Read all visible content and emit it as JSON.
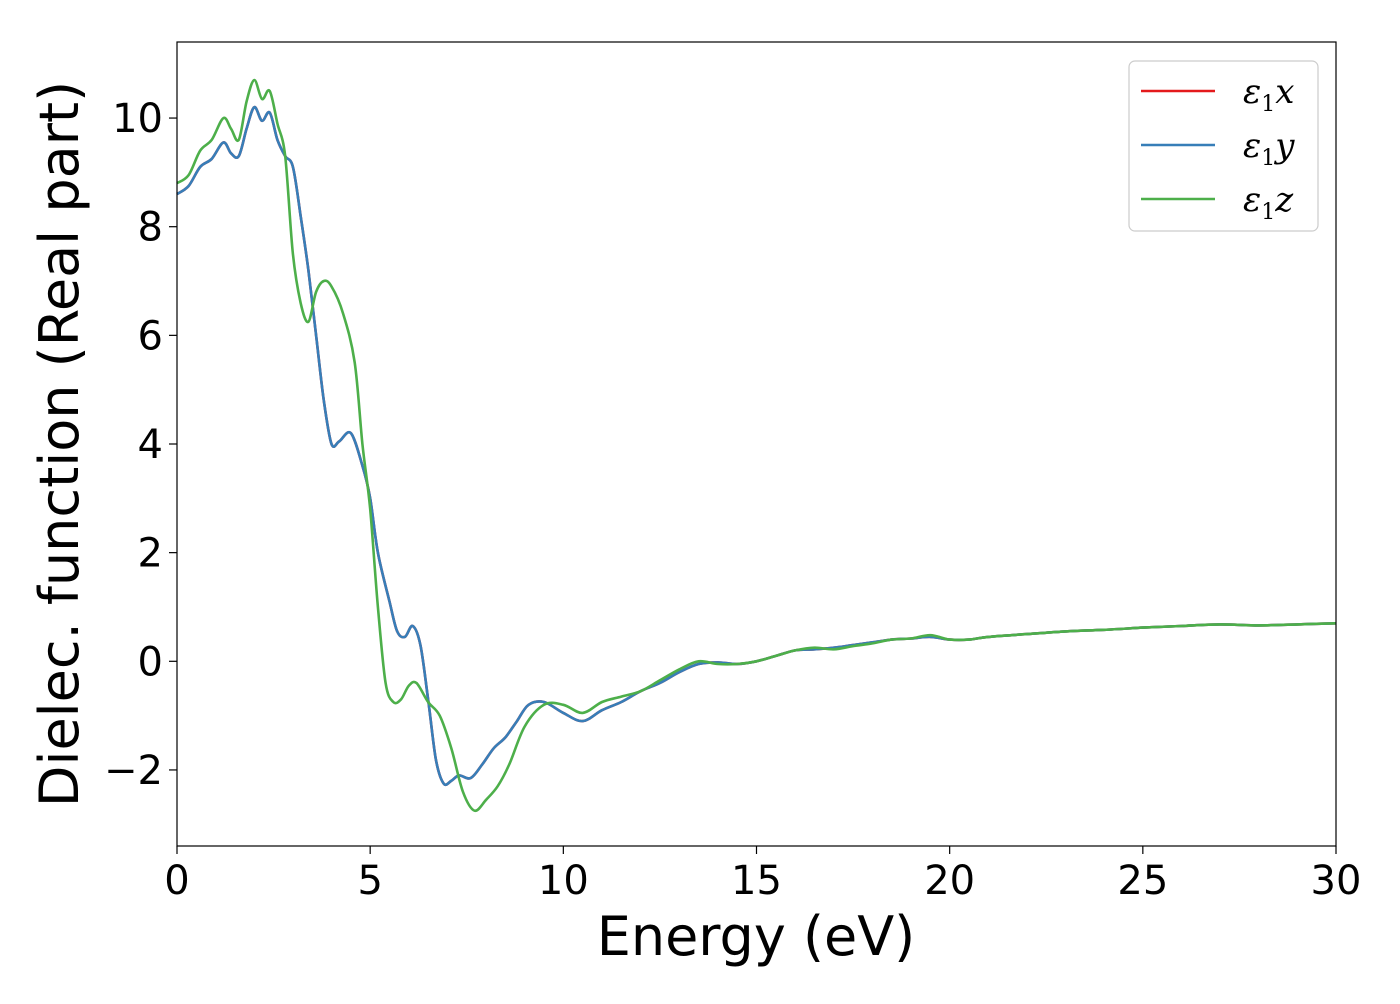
{
  "chart_data": {
    "type": "line",
    "title": "",
    "xlabel": "Energy (eV)",
    "ylabel": "Dielec. function (Real part)",
    "xlim": [
      0,
      30
    ],
    "ylim": [
      -3.4,
      11.4
    ],
    "xticks": [
      0,
      5,
      10,
      15,
      20,
      25,
      30
    ],
    "xtick_labels": [
      "0",
      "5",
      "10",
      "15",
      "20",
      "25",
      "30"
    ],
    "yticks": [
      -2,
      0,
      2,
      4,
      6,
      8,
      10
    ],
    "ytick_labels": [
      "−2",
      "0",
      "2",
      "4",
      "6",
      "8",
      "10"
    ],
    "grid": false,
    "legend_position": "top-right",
    "series": [
      {
        "name": "ε1x",
        "label_base": "ε",
        "label_sub": "1",
        "label_suffix": "x",
        "color": "#e41a1c",
        "x": [
          0,
          0.3,
          0.6,
          0.9,
          1.2,
          1.4,
          1.6,
          1.8,
          2.0,
          2.2,
          2.4,
          2.6,
          2.8,
          3.0,
          3.2,
          3.4,
          3.6,
          3.8,
          4.0,
          4.2,
          4.5,
          4.8,
          5.0,
          5.2,
          5.5,
          5.7,
          5.9,
          6.1,
          6.3,
          6.5,
          6.7,
          6.9,
          7.1,
          7.3,
          7.6,
          7.9,
          8.2,
          8.5,
          8.8,
          9.1,
          9.5,
          10.0,
          10.5,
          11.0,
          11.5,
          12.0,
          12.5,
          13.0,
          13.5,
          14.0,
          14.5,
          15.0,
          15.5,
          16.0,
          16.5,
          17.0,
          17.5,
          18.0,
          18.5,
          19.0,
          19.5,
          20.0,
          20.5,
          21.0,
          22.0,
          23.0,
          24.0,
          25.0,
          26.0,
          27.0,
          28.0,
          29.0,
          30.0
        ],
        "y": [
          8.6,
          8.75,
          9.1,
          9.25,
          9.55,
          9.35,
          9.3,
          9.8,
          10.2,
          9.95,
          10.1,
          9.6,
          9.3,
          9.1,
          8.2,
          7.2,
          6.0,
          4.8,
          4.0,
          4.05,
          4.2,
          3.6,
          3.0,
          2.0,
          1.1,
          0.55,
          0.45,
          0.65,
          0.3,
          -0.7,
          -1.8,
          -2.25,
          -2.2,
          -2.1,
          -2.15,
          -1.9,
          -1.6,
          -1.4,
          -1.1,
          -0.8,
          -0.75,
          -0.95,
          -1.1,
          -0.9,
          -0.75,
          -0.55,
          -0.4,
          -0.2,
          -0.05,
          -0.02,
          -0.05,
          0.0,
          0.1,
          0.2,
          0.22,
          0.25,
          0.3,
          0.35,
          0.4,
          0.42,
          0.45,
          0.4,
          0.4,
          0.45,
          0.5,
          0.55,
          0.58,
          0.62,
          0.65,
          0.68,
          0.66,
          0.68,
          0.7
        ]
      },
      {
        "name": "ε1y",
        "label_base": "ε",
        "label_sub": "1",
        "label_suffix": "y",
        "color": "#377eb8",
        "x": [
          0,
          0.3,
          0.6,
          0.9,
          1.2,
          1.4,
          1.6,
          1.8,
          2.0,
          2.2,
          2.4,
          2.6,
          2.8,
          3.0,
          3.2,
          3.4,
          3.6,
          3.8,
          4.0,
          4.2,
          4.5,
          4.8,
          5.0,
          5.2,
          5.5,
          5.7,
          5.9,
          6.1,
          6.3,
          6.5,
          6.7,
          6.9,
          7.1,
          7.3,
          7.6,
          7.9,
          8.2,
          8.5,
          8.8,
          9.1,
          9.5,
          10.0,
          10.5,
          11.0,
          11.5,
          12.0,
          12.5,
          13.0,
          13.5,
          14.0,
          14.5,
          15.0,
          15.5,
          16.0,
          16.5,
          17.0,
          17.5,
          18.0,
          18.5,
          19.0,
          19.5,
          20.0,
          20.5,
          21.0,
          22.0,
          23.0,
          24.0,
          25.0,
          26.0,
          27.0,
          28.0,
          29.0,
          30.0
        ],
        "y": [
          8.6,
          8.75,
          9.1,
          9.25,
          9.55,
          9.35,
          9.3,
          9.8,
          10.2,
          9.95,
          10.1,
          9.6,
          9.3,
          9.1,
          8.2,
          7.2,
          6.0,
          4.8,
          4.0,
          4.05,
          4.2,
          3.6,
          3.0,
          2.0,
          1.1,
          0.55,
          0.45,
          0.65,
          0.3,
          -0.7,
          -1.8,
          -2.25,
          -2.2,
          -2.1,
          -2.15,
          -1.9,
          -1.6,
          -1.4,
          -1.1,
          -0.8,
          -0.75,
          -0.95,
          -1.1,
          -0.9,
          -0.75,
          -0.55,
          -0.4,
          -0.2,
          -0.05,
          -0.02,
          -0.05,
          0.0,
          0.1,
          0.2,
          0.22,
          0.25,
          0.3,
          0.35,
          0.4,
          0.42,
          0.45,
          0.4,
          0.4,
          0.45,
          0.5,
          0.55,
          0.58,
          0.62,
          0.65,
          0.68,
          0.66,
          0.68,
          0.7
        ]
      },
      {
        "name": "ε1z",
        "label_base": "ε",
        "label_sub": "1",
        "label_suffix": "z",
        "color": "#4daf4a",
        "x": [
          0,
          0.3,
          0.6,
          0.9,
          1.2,
          1.4,
          1.6,
          1.8,
          2.0,
          2.2,
          2.4,
          2.6,
          2.8,
          3.0,
          3.2,
          3.4,
          3.6,
          3.8,
          4.0,
          4.3,
          4.6,
          4.8,
          5.0,
          5.2,
          5.4,
          5.6,
          5.8,
          6.0,
          6.2,
          6.5,
          6.8,
          7.1,
          7.4,
          7.7,
          8.0,
          8.3,
          8.6,
          9.0,
          9.5,
          10.0,
          10.5,
          11.0,
          11.5,
          12.0,
          12.5,
          13.0,
          13.5,
          14.0,
          14.5,
          15.0,
          15.5,
          16.0,
          16.5,
          17.0,
          17.5,
          18.0,
          18.5,
          19.0,
          19.5,
          20.0,
          20.5,
          21.0,
          22.0,
          23.0,
          24.0,
          25.0,
          26.0,
          27.0,
          28.0,
          29.0,
          30.0
        ],
        "y": [
          8.8,
          8.95,
          9.4,
          9.6,
          10.0,
          9.8,
          9.6,
          10.3,
          10.7,
          10.35,
          10.5,
          9.9,
          9.3,
          7.5,
          6.6,
          6.25,
          6.8,
          7.0,
          6.9,
          6.4,
          5.5,
          4.0,
          2.8,
          1.0,
          -0.4,
          -0.75,
          -0.7,
          -0.45,
          -0.4,
          -0.75,
          -1.0,
          -1.6,
          -2.4,
          -2.75,
          -2.55,
          -2.3,
          -1.9,
          -1.2,
          -0.8,
          -0.8,
          -0.95,
          -0.75,
          -0.65,
          -0.55,
          -0.35,
          -0.15,
          0.0,
          -0.05,
          -0.05,
          0.0,
          0.1,
          0.2,
          0.25,
          0.22,
          0.28,
          0.33,
          0.4,
          0.42,
          0.48,
          0.4,
          0.4,
          0.45,
          0.5,
          0.55,
          0.58,
          0.62,
          0.65,
          0.68,
          0.66,
          0.68,
          0.7
        ]
      }
    ]
  }
}
